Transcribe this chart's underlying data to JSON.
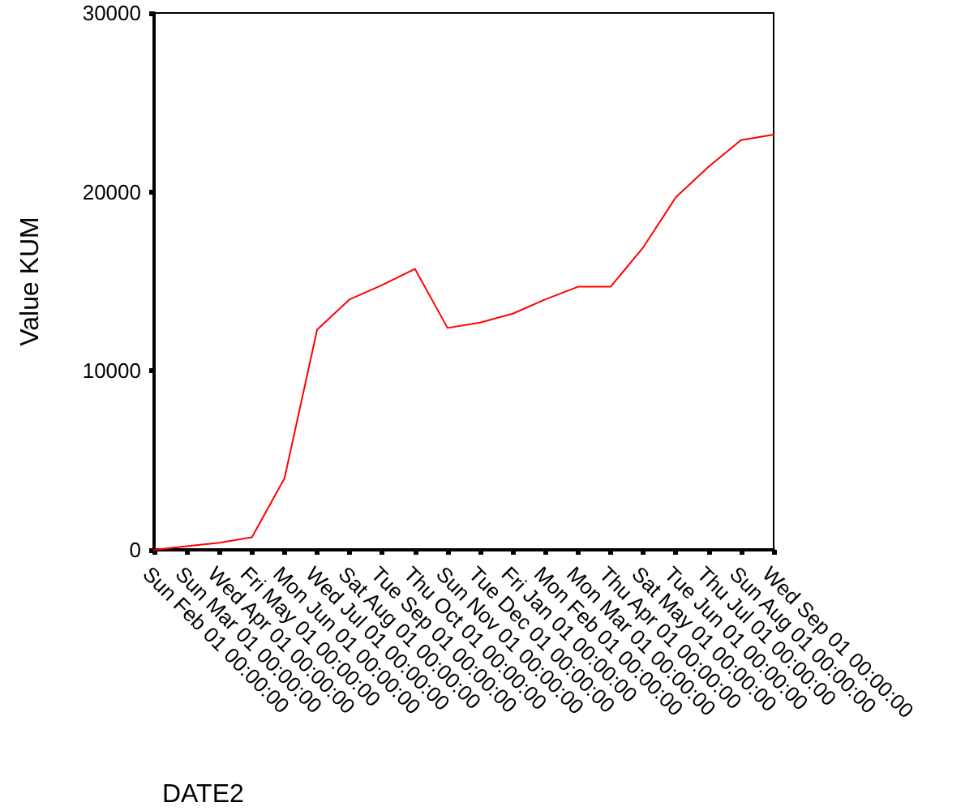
{
  "chart_data": {
    "type": "line",
    "xlabel": "DATE2",
    "ylabel": "Value KUM",
    "categories": [
      "Sun Feb 01 00:00:00",
      "Sun Mar 01 00:00:00",
      "Wed Apr 01 00:00:00",
      "Fri May 01 00:00:00",
      "Mon Jun 01 00:00:00",
      "Wed Jul 01 00:00:00",
      "Sat Aug 01 00:00:00",
      "Tue Sep 01 00:00:00",
      "Thu Oct 01 00:00:00",
      "Sun Nov 01 00:00:00",
      "Tue Dec 01 00:00:00",
      "Fri Jan 01 00:00:00",
      "Mon Feb 01 00:00:00",
      "Mon Mar 01 00:00:00",
      "Thu Apr 01 00:00:00",
      "Sat May 01 00:00:00",
      "Tue Jun 01 00:00:00",
      "Thu Jul 01 00:00:00",
      "Sun Aug 01 00:00:00",
      "Wed Sep 01 00:00:00"
    ],
    "series": [
      {
        "color": "#ff0000",
        "values": [
          0,
          200,
          400,
          700,
          4000,
          12300,
          14000,
          14800,
          15700,
          12400,
          12700,
          13200,
          14000,
          14700,
          14700,
          16900,
          19700,
          21400,
          22900,
          23200
        ]
      }
    ],
    "ylim": [
      0,
      30000
    ],
    "yticks": [
      0,
      10000,
      20000,
      30000
    ],
    "grid": false,
    "marker": "none",
    "line_style": "solid"
  }
}
